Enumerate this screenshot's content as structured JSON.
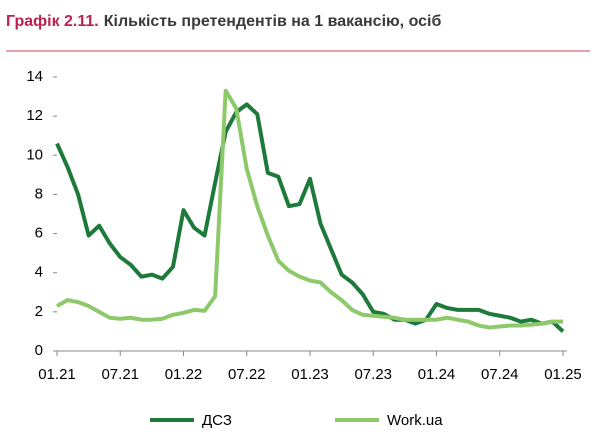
{
  "chart_data": {
    "type": "line",
    "label": "Графік 2.11.",
    "title": "Кількість претендентів на 1 вакансію, осіб",
    "categories": [
      "01.21",
      null,
      null,
      null,
      null,
      null,
      "07.21",
      null,
      null,
      null,
      null,
      null,
      "01.22",
      null,
      null,
      null,
      null,
      null,
      "07.22",
      null,
      null,
      null,
      null,
      null,
      "01.23",
      null,
      null,
      null,
      null,
      null,
      "07.23",
      null,
      null,
      null,
      null,
      null,
      "01.24",
      null,
      null,
      null,
      null,
      null,
      "07.24",
      null,
      null,
      null,
      null,
      null,
      "01.25"
    ],
    "series": [
      {
        "name": "ДСЗ",
        "color": "#1e7a3a",
        "values": [
          10.6,
          9.4,
          8.0,
          5.9,
          6.4,
          5.5,
          4.8,
          4.4,
          3.8,
          3.9,
          3.7,
          4.3,
          7.2,
          6.3,
          5.9,
          8.6,
          11.2,
          12.2,
          12.6,
          12.1,
          9.1,
          8.9,
          7.4,
          7.5,
          8.8,
          6.5,
          5.2,
          3.9,
          3.5,
          2.9,
          2.0,
          1.9,
          1.6,
          1.6,
          1.4,
          1.6,
          2.4,
          2.2,
          2.1,
          2.1,
          2.1,
          1.9,
          1.8,
          1.7,
          1.5,
          1.6,
          1.4,
          1.5,
          1.0
        ]
      },
      {
        "name": "Work.ua",
        "color": "#8dc96a",
        "values": [
          2.3,
          2.6,
          2.5,
          2.3,
          2.0,
          1.7,
          1.65,
          1.7,
          1.6,
          1.6,
          1.65,
          1.85,
          1.95,
          2.1,
          2.05,
          2.8,
          13.3,
          12.4,
          9.3,
          7.4,
          5.9,
          4.6,
          4.1,
          3.8,
          3.6,
          3.5,
          3.0,
          2.6,
          2.1,
          1.85,
          1.8,
          1.75,
          1.7,
          1.6,
          1.6,
          1.6,
          1.6,
          1.7,
          1.6,
          1.5,
          1.3,
          1.2,
          1.25,
          1.3,
          1.3,
          1.35,
          1.4,
          1.5,
          1.5
        ]
      }
    ],
    "ylim": [
      0,
      14
    ],
    "yticks": [
      0,
      2,
      4,
      6,
      8,
      10,
      12,
      14
    ]
  }
}
